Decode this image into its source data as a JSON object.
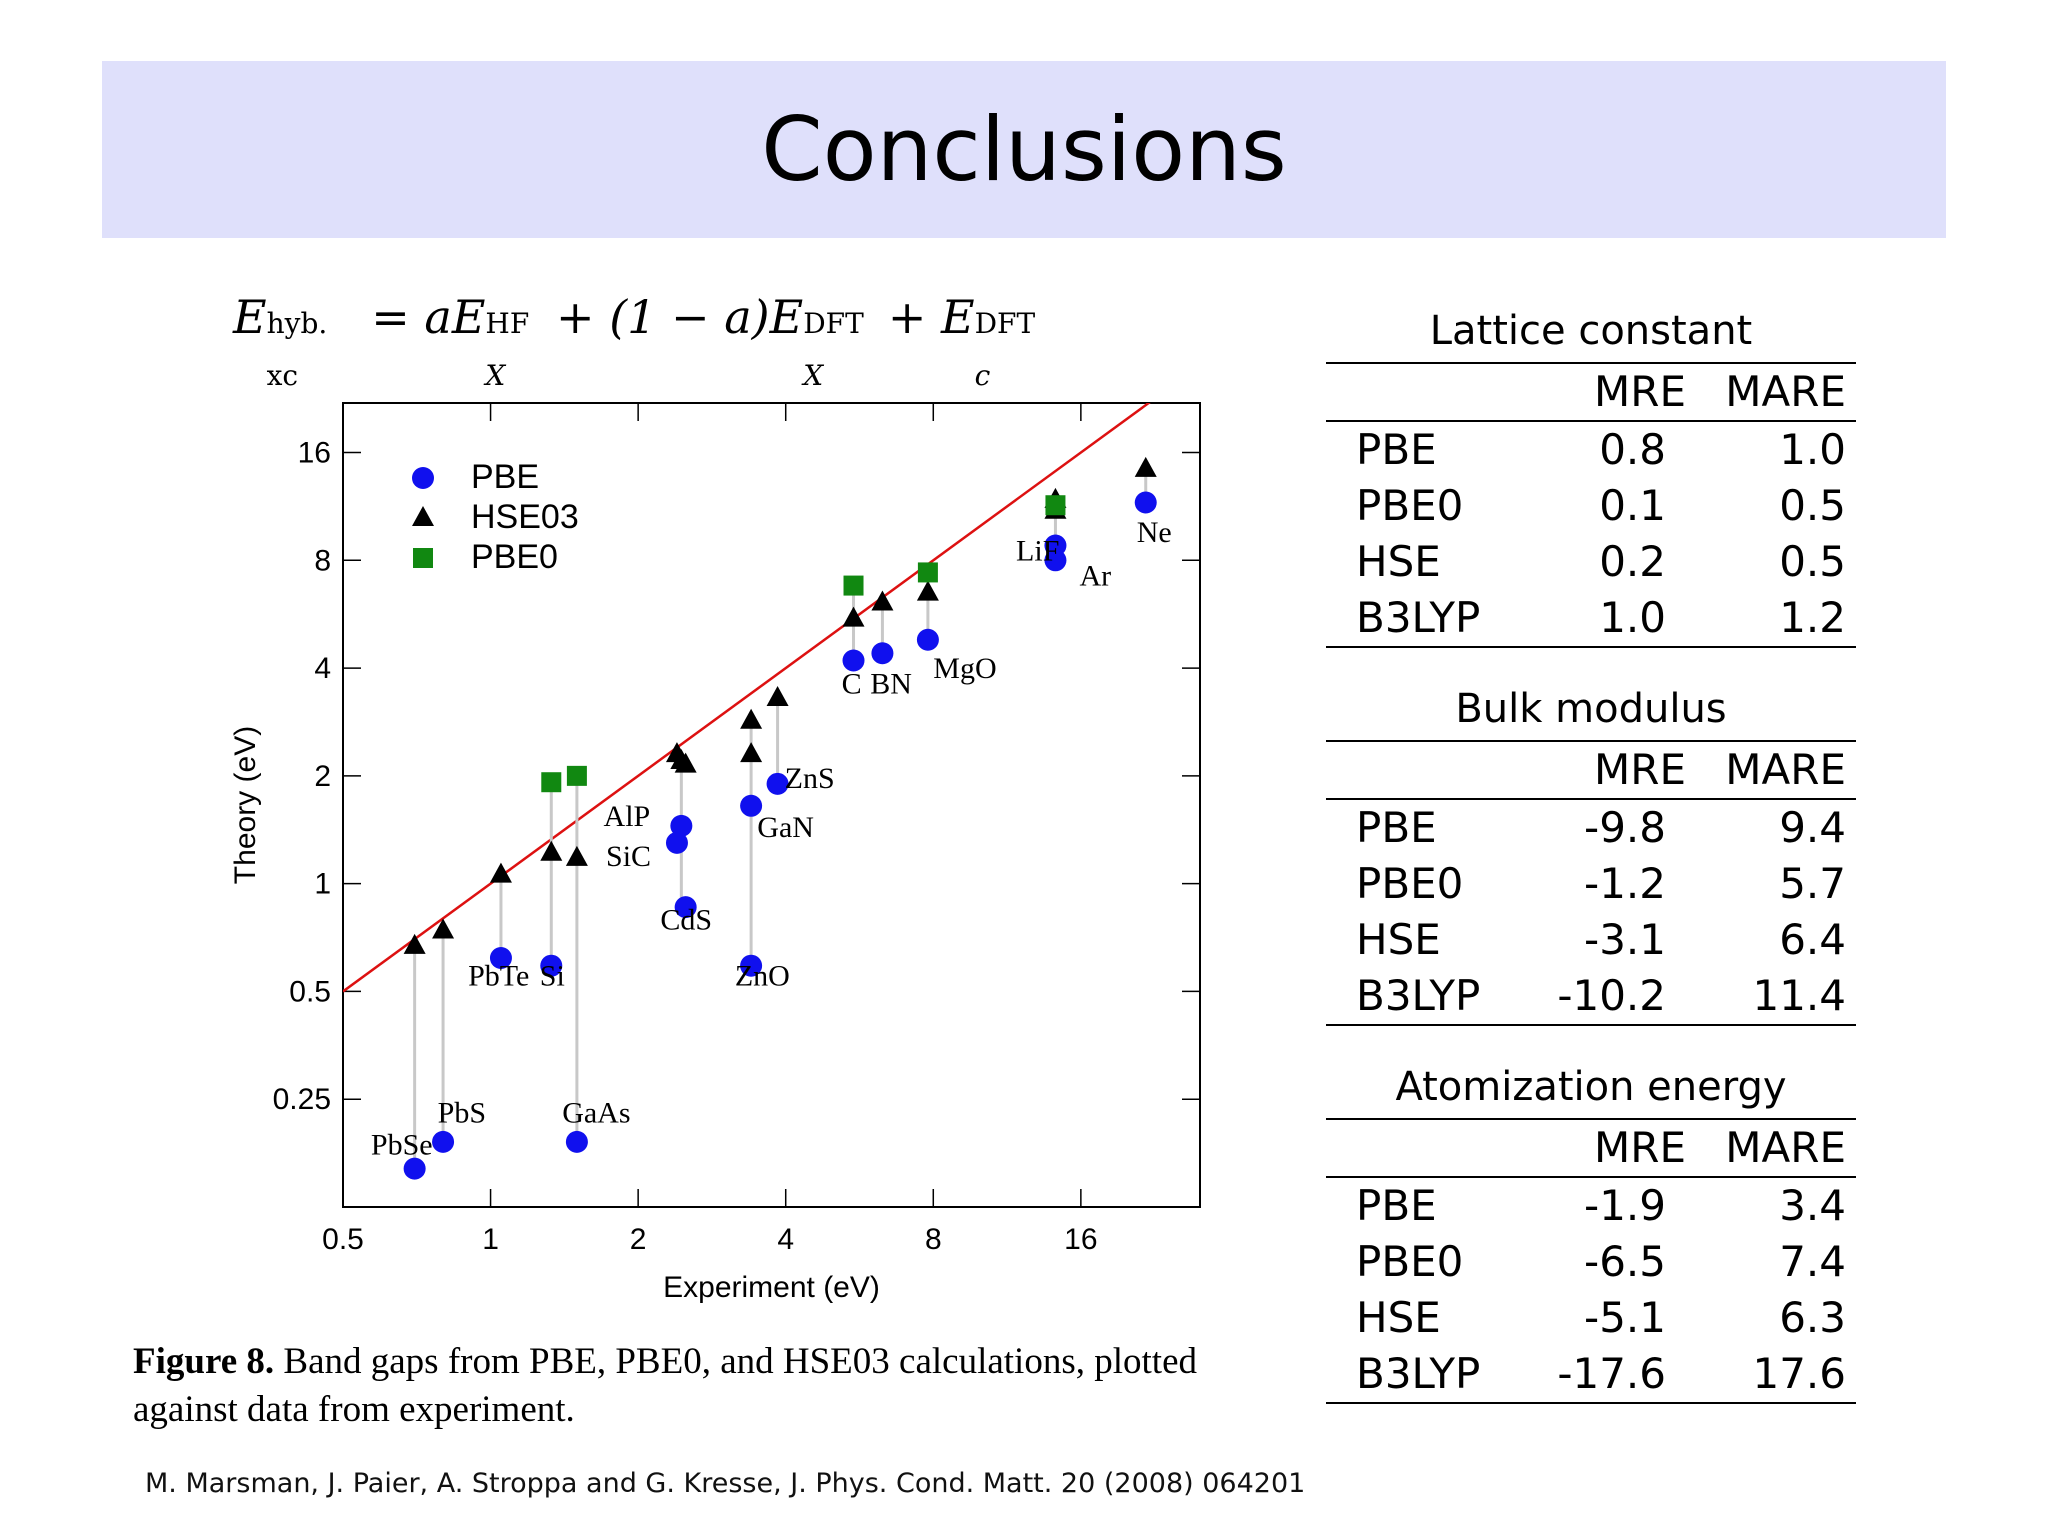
{
  "slide": {
    "title": "Conclusions",
    "formula": {
      "lhs": "E",
      "lhs_sup": "hyb.",
      "lhs_sub": "xc",
      "eq": "=",
      "t1_coef": "a",
      "t1": "E",
      "t1_sup": "HF",
      "t1_sub": "X",
      "plus1": "+",
      "t2_coef": "(1 − a)",
      "t2": "E",
      "t2_sup": "DFT",
      "t2_sub": "X",
      "plus2": "+",
      "t3": "E",
      "t3_sup": "DFT",
      "t3_sub": "c"
    },
    "caption_bold": "Figure 8.",
    "caption_text": " Band gaps from PBE, PBE0, and HSE03 calculations, plotted against data from experiment.",
    "citation": "M. Marsman, J. Paier, A. Stroppa and G. Kresse, J. Phys. Cond. Matt. 20 (2008) 064201"
  },
  "tables": [
    {
      "title": "Lattice constant",
      "headers": [
        "",
        "MRE",
        "MARE"
      ],
      "rows": [
        [
          "PBE",
          "0.8",
          "1.0"
        ],
        [
          "PBE0",
          "0.1",
          "0.5"
        ],
        [
          "HSE",
          "0.2",
          "0.5"
        ],
        [
          "B3LYP",
          "1.0",
          "1.2"
        ]
      ]
    },
    {
      "title": "Bulk modulus",
      "headers": [
        "",
        "MRE",
        "MARE"
      ],
      "rows": [
        [
          "PBE",
          "-9.8",
          "9.4"
        ],
        [
          "PBE0",
          "-1.2",
          "5.7"
        ],
        [
          "HSE",
          "-3.1",
          "6.4"
        ],
        [
          "B3LYP",
          "-10.2",
          "11.4"
        ]
      ]
    },
    {
      "title": "Atomization energy",
      "headers": [
        "",
        "MRE",
        "MARE"
      ],
      "rows": [
        [
          "PBE",
          "-1.9",
          "3.4"
        ],
        [
          "PBE0",
          "-6.5",
          "7.4"
        ],
        [
          "HSE",
          "-5.1",
          "6.3"
        ],
        [
          "B3LYP",
          "-17.6",
          "17.6"
        ]
      ]
    }
  ],
  "chart_data": {
    "type": "scatter",
    "xlabel": "Experiment (eV)",
    "ylabel": "Theory (eV)",
    "xscale": "log2",
    "yscale": "log2",
    "xlim": [
      0.5,
      28
    ],
    "ylim": [
      0.125,
      22
    ],
    "xticks": [
      "0.5",
      "1",
      "2",
      "4",
      "8",
      "16"
    ],
    "xtick_values": [
      0.5,
      1,
      2,
      4,
      8,
      16
    ],
    "yticks": [
      "0.25",
      "0.5",
      "1",
      "2",
      "4",
      "8",
      "16"
    ],
    "ytick_values": [
      0.25,
      0.5,
      1,
      2,
      4,
      8,
      16
    ],
    "grid": false,
    "legend_position": "top-left",
    "diagonal_color": "#dd1111",
    "series": [
      {
        "name": "PBE",
        "marker": "circle",
        "color": "#1010ee",
        "points": [
          {
            "x": 0.7,
            "y": 0.16
          },
          {
            "x": 0.8,
            "y": 0.19
          },
          {
            "x": 1.05,
            "y": 0.62
          },
          {
            "x": 1.33,
            "y": 0.59
          },
          {
            "x": 1.5,
            "y": 0.19
          },
          {
            "x": 2.45,
            "y": 1.45
          },
          {
            "x": 2.4,
            "y": 1.3
          },
          {
            "x": 2.5,
            "y": 0.86
          },
          {
            "x": 3.4,
            "y": 1.65
          },
          {
            "x": 3.4,
            "y": 0.59
          },
          {
            "x": 3.85,
            "y": 1.9
          },
          {
            "x": 5.5,
            "y": 4.2
          },
          {
            "x": 6.3,
            "y": 4.4
          },
          {
            "x": 7.8,
            "y": 4.8
          },
          {
            "x": 14.2,
            "y": 8.8
          },
          {
            "x": 14.2,
            "y": 8.0
          },
          {
            "x": 21.7,
            "y": 11.6
          }
        ]
      },
      {
        "name": "HSE03",
        "marker": "triangle",
        "color": "#000000",
        "points": [
          {
            "x": 0.7,
            "y": 0.67
          },
          {
            "x": 0.8,
            "y": 0.74
          },
          {
            "x": 1.05,
            "y": 1.06
          },
          {
            "x": 1.33,
            "y": 1.22
          },
          {
            "x": 1.5,
            "y": 1.18
          },
          {
            "x": 2.4,
            "y": 2.3
          },
          {
            "x": 2.45,
            "y": 2.2
          },
          {
            "x": 2.5,
            "y": 2.15
          },
          {
            "x": 3.4,
            "y": 2.85
          },
          {
            "x": 3.4,
            "y": 2.3
          },
          {
            "x": 3.85,
            "y": 3.3
          },
          {
            "x": 5.5,
            "y": 5.5
          },
          {
            "x": 6.3,
            "y": 6.1
          },
          {
            "x": 7.8,
            "y": 6.5
          },
          {
            "x": 14.2,
            "y": 11.0
          },
          {
            "x": 14.2,
            "y": 11.8
          },
          {
            "x": 21.7,
            "y": 14.4
          }
        ]
      },
      {
        "name": "PBE0",
        "marker": "square",
        "color": "#118811",
        "points": [
          {
            "x": 1.33,
            "y": 1.92
          },
          {
            "x": 1.5,
            "y": 2.0
          },
          {
            "x": 5.5,
            "y": 6.8
          },
          {
            "x": 7.8,
            "y": 7.4
          },
          {
            "x": 14.2,
            "y": 11.4
          }
        ]
      }
    ],
    "droplines": [
      {
        "x": 0.7,
        "y_low": 0.16,
        "y_high": 0.67
      },
      {
        "x": 0.8,
        "y_low": 0.19,
        "y_high": 0.74
      },
      {
        "x": 1.05,
        "y_low": 0.62,
        "y_high": 1.06
      },
      {
        "x": 1.33,
        "y_low": 0.59,
        "y_high": 1.92
      },
      {
        "x": 1.5,
        "y_low": 0.19,
        "y_high": 2.0
      },
      {
        "x": 2.45,
        "y_low": 0.86,
        "y_high": 2.3
      },
      {
        "x": 3.4,
        "y_low": 0.59,
        "y_high": 2.85
      },
      {
        "x": 3.85,
        "y_low": 1.9,
        "y_high": 3.3
      },
      {
        "x": 5.5,
        "y_low": 4.2,
        "y_high": 6.8
      },
      {
        "x": 6.3,
        "y_low": 4.4,
        "y_high": 6.1
      },
      {
        "x": 7.8,
        "y_low": 4.8,
        "y_high": 7.4
      },
      {
        "x": 14.2,
        "y_low": 8.0,
        "y_high": 11.8
      },
      {
        "x": 21.7,
        "y_low": 11.6,
        "y_high": 14.4
      }
    ],
    "annotations": [
      {
        "text": "PbSe",
        "x": 0.57,
        "y": 0.175
      },
      {
        "text": "PbS",
        "x": 0.78,
        "y": 0.215
      },
      {
        "text": "PbTe",
        "x": 0.9,
        "y": 0.52
      },
      {
        "text": "Si",
        "x": 1.26,
        "y": 0.52
      },
      {
        "text": "GaAs",
        "x": 1.4,
        "y": 0.215
      },
      {
        "text": "AlP",
        "x": 1.7,
        "y": 1.45
      },
      {
        "text": "SiC",
        "x": 1.72,
        "y": 1.12
      },
      {
        "text": "CdS",
        "x": 2.22,
        "y": 0.745
      },
      {
        "text": "ZnO",
        "x": 3.15,
        "y": 0.52
      },
      {
        "text": "GaN",
        "x": 3.5,
        "y": 1.35
      },
      {
        "text": "ZnS",
        "x": 3.98,
        "y": 1.85
      },
      {
        "text": "C",
        "x": 5.2,
        "y": 3.4
      },
      {
        "text": "BN",
        "x": 5.95,
        "y": 3.4
      },
      {
        "text": "MgO",
        "x": 8.0,
        "y": 3.75
      },
      {
        "text": "LiF",
        "x": 11.8,
        "y": 8.0
      },
      {
        "text": "Ar",
        "x": 15.9,
        "y": 6.8
      },
      {
        "text": "Ne",
        "x": 20.8,
        "y": 9.0
      }
    ]
  }
}
